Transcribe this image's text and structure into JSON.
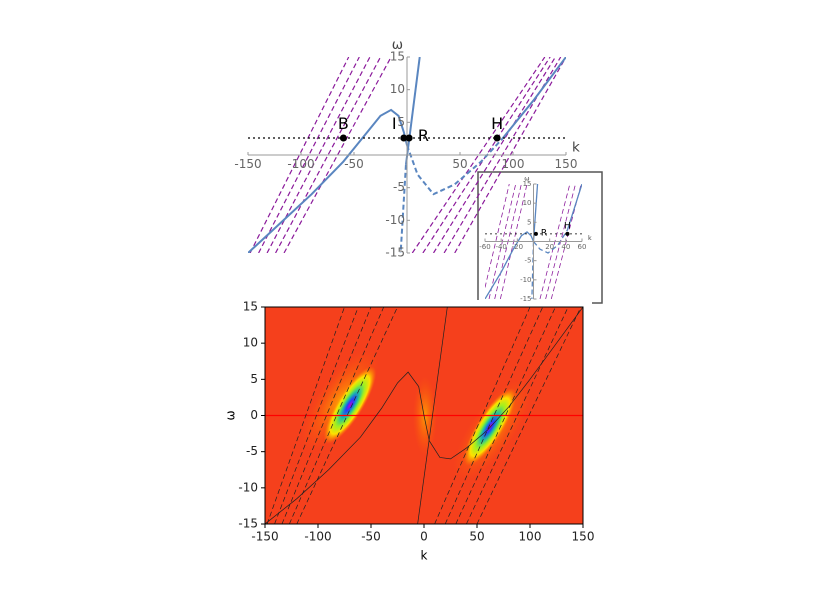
{
  "chart_data": [
    {
      "type": "line",
      "frame": false,
      "xlabel": "k",
      "ylabel": "ω",
      "xlim": [
        -150,
        150
      ],
      "ylim": [
        -15,
        15
      ],
      "xticks": [
        -150,
        -100,
        -50,
        50,
        100,
        150
      ],
      "yticks": [
        15,
        10,
        5,
        -5,
        -10,
        -15
      ],
      "series": [
        {
          "color": "#8b1a9b",
          "dash": "dashed",
          "x": [
            -148,
            -55
          ],
          "values": [
            -15,
            15
          ]
        },
        {
          "color": "#8b1a9b",
          "dash": "dashed",
          "x": [
            -140,
            -45
          ],
          "values": [
            -15,
            15
          ]
        },
        {
          "color": "#8b1a9b",
          "dash": "dashed",
          "x": [
            -132,
            -35
          ],
          "values": [
            -15,
            15
          ]
        },
        {
          "color": "#8b1a9b",
          "dash": "dashed",
          "x": [
            -124,
            -25
          ],
          "values": [
            -15,
            15
          ]
        },
        {
          "color": "#8b1a9b",
          "dash": "dashed",
          "x": [
            -116,
            -15
          ],
          "values": [
            -15,
            15
          ]
        },
        {
          "color": "#8b1a9b",
          "dash": "dashed",
          "x": [
            5,
            130
          ],
          "values": [
            -15,
            15
          ]
        },
        {
          "color": "#8b1a9b",
          "dash": "dashed",
          "x": [
            15,
            135
          ],
          "values": [
            -15,
            15
          ]
        },
        {
          "color": "#8b1a9b",
          "dash": "dashed",
          "x": [
            25,
            140
          ],
          "values": [
            -15,
            15
          ]
        },
        {
          "color": "#8b1a9b",
          "dash": "dashed",
          "x": [
            35,
            145
          ],
          "values": [
            -15,
            15
          ]
        },
        {
          "color": "#8b1a9b",
          "dash": "dashed",
          "x": [
            45,
            150
          ],
          "values": [
            -15,
            15
          ]
        },
        {
          "color": "#5a86c0",
          "dash": "solid",
          "x": [
            -150,
            -120,
            -90,
            -60,
            -40,
            -25,
            -15,
            -8,
            -3,
            0
          ],
          "values": [
            -15,
            -10.5,
            -6,
            -1,
            3,
            6,
            6.9,
            6,
            3.5,
            1.5
          ]
        },
        {
          "color": "#5a86c0",
          "dash": "solid",
          "x": [
            -1,
            12
          ],
          "values": [
            -1.5,
            15
          ]
        },
        {
          "color": "#5a86c0",
          "dash": "dashed",
          "x": [
            -1,
            -6
          ],
          "values": [
            -1.5,
            -15
          ]
        },
        {
          "color": "#5a86c0",
          "dash": "dashed",
          "x": [
            0,
            10,
            25,
            45,
            70,
            90
          ],
          "values": [
            1.5,
            -3,
            -6,
            -4.5,
            -1,
            2.5
          ]
        },
        {
          "color": "#5a86c0",
          "dash": "solid",
          "x": [
            90,
            120,
            150
          ],
          "values": [
            2.5,
            8.5,
            15
          ]
        },
        {
          "color": "#000000",
          "dash": "dotted",
          "x": [
            -150,
            150
          ],
          "values": [
            2.6,
            2.6
          ]
        }
      ],
      "annotations": [
        {
          "text": "B",
          "x": -60,
          "y": 2.6
        },
        {
          "text": "I",
          "x": -3,
          "y": 2.6
        },
        {
          "text": "R",
          "x": 2,
          "y": 2.6
        },
        {
          "text": "H",
          "x": 85,
          "y": 2.6
        }
      ]
    },
    {
      "type": "line",
      "frame": false,
      "xlabel": "k",
      "ylabel": "ω",
      "xlim": [
        -60,
        60
      ],
      "ylim": [
        -15,
        15
      ],
      "xticks": [
        -60,
        -40,
        -20,
        20,
        40,
        60
      ],
      "yticks": [
        15,
        10,
        5,
        -5,
        -10,
        -15
      ],
      "series": [
        {
          "color": "#8b1a9b",
          "dash": "dashed",
          "x": [
            -60,
            -30
          ],
          "values": [
            -12,
            15
          ]
        },
        {
          "color": "#8b1a9b",
          "dash": "dashed",
          "x": [
            -55,
            -22
          ],
          "values": [
            -15,
            15
          ]
        },
        {
          "color": "#8b1a9b",
          "dash": "dashed",
          "x": [
            -48,
            -15
          ],
          "values": [
            -15,
            15
          ]
        },
        {
          "color": "#8b1a9b",
          "dash": "dashed",
          "x": [
            -41,
            -8
          ],
          "values": [
            -15,
            15
          ]
        },
        {
          "color": "#8b1a9b",
          "dash": "dashed",
          "x": [
            8,
            45
          ],
          "values": [
            -15,
            15
          ]
        },
        {
          "color": "#8b1a9b",
          "dash": "dashed",
          "x": [
            15,
            52
          ],
          "values": [
            -15,
            15
          ]
        },
        {
          "color": "#8b1a9b",
          "dash": "dashed",
          "x": [
            22,
            59
          ],
          "values": [
            -15,
            15
          ]
        },
        {
          "color": "#5a86c0",
          "dash": "solid",
          "x": [
            -60,
            -40,
            -25,
            -15,
            -8,
            -3,
            0
          ],
          "values": [
            -15,
            -8,
            -2,
            1.5,
            2.5,
            1.5,
            0
          ]
        },
        {
          "color": "#5a86c0",
          "dash": "solid",
          "x": [
            0,
            5
          ],
          "values": [
            0,
            15
          ]
        },
        {
          "color": "#5a86c0",
          "dash": "dashed",
          "x": [
            0,
            -2
          ],
          "values": [
            0,
            -15
          ]
        },
        {
          "color": "#5a86c0",
          "dash": "dashed",
          "x": [
            0,
            8,
            18,
            30,
            42
          ],
          "values": [
            0,
            -2,
            -3,
            -1,
            3
          ]
        },
        {
          "color": "#5a86c0",
          "dash": "solid",
          "x": [
            42,
            60
          ],
          "values": [
            3,
            15
          ]
        },
        {
          "color": "#000000",
          "dash": "dotted",
          "x": [
            -60,
            60
          ],
          "values": [
            2,
            2
          ]
        }
      ],
      "annotations": [
        {
          "text": "R",
          "x": 3,
          "y": 2
        },
        {
          "text": "H",
          "x": 42,
          "y": 2
        }
      ]
    },
    {
      "type": "line",
      "frame": true,
      "xlabel": "k",
      "ylabel": "ω",
      "xlim": [
        -150,
        150
      ],
      "ylim": [
        -15,
        15
      ],
      "xticks": [
        -150,
        -100,
        -50,
        0,
        50,
        100,
        150
      ],
      "yticks": [
        15,
        10,
        5,
        0,
        -5,
        -10,
        -15
      ],
      "series": [
        {
          "color": "#ff0000",
          "dash": "solid",
          "x": [
            -150,
            150
          ],
          "values": [
            0,
            0
          ]
        },
        {
          "color": "#222222",
          "dash": "dashed",
          "x": [
            -148,
            -75
          ],
          "values": [
            -15,
            15
          ]
        },
        {
          "color": "#222222",
          "dash": "dashed",
          "x": [
            -141,
            -62
          ],
          "values": [
            -15,
            15
          ]
        },
        {
          "color": "#222222",
          "dash": "dashed",
          "x": [
            -134,
            -50
          ],
          "values": [
            -15,
            15
          ]
        },
        {
          "color": "#222222",
          "dash": "dashed",
          "x": [
            -127,
            -38
          ],
          "values": [
            -15,
            15
          ]
        },
        {
          "color": "#222222",
          "dash": "dashed",
          "x": [
            -120,
            -25
          ],
          "values": [
            -15,
            15
          ]
        },
        {
          "color": "#222222",
          "dash": "dashed",
          "x": [
            10,
            100
          ],
          "values": [
            -15,
            15
          ]
        },
        {
          "color": "#222222",
          "dash": "dashed",
          "x": [
            20,
            112
          ],
          "values": [
            -15,
            15
          ]
        },
        {
          "color": "#222222",
          "dash": "dashed",
          "x": [
            30,
            124
          ],
          "values": [
            -15,
            15
          ]
        },
        {
          "color": "#222222",
          "dash": "dashed",
          "x": [
            40,
            136
          ],
          "values": [
            -15,
            15
          ]
        },
        {
          "color": "#222222",
          "dash": "dashed",
          "x": [
            50,
            148
          ],
          "values": [
            -15,
            15
          ]
        },
        {
          "color": "#222222",
          "dash": "solid",
          "x": [
            -150,
            -120,
            -90,
            -60,
            -40,
            -25,
            -15,
            -5,
            0,
            5,
            15,
            25,
            40,
            60,
            80,
            100,
            125,
            150
          ],
          "values": [
            -15,
            -11.5,
            -7.5,
            -3,
            1,
            4.5,
            6,
            4,
            0,
            -3.5,
            -5.8,
            -6,
            -4.5,
            -2,
            1.2,
            5,
            10,
            15
          ]
        },
        {
          "color": "#222222",
          "dash": "solid",
          "x": [
            -6,
            22
          ],
          "values": [
            -15,
            15
          ]
        }
      ],
      "annotations": []
    }
  ]
}
